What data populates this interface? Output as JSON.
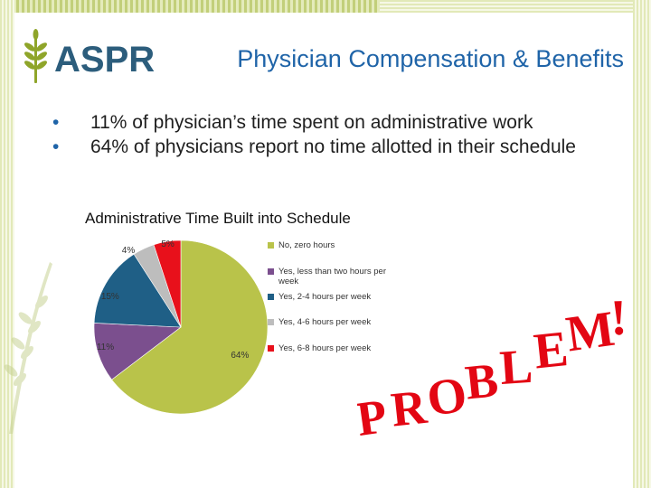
{
  "brand": {
    "name": "ASPR"
  },
  "title": "Physician Compensation & Benefits",
  "bullets": [
    "11% of physician’s time spent on administrative work",
    "64% of physicians report no time allotted in their schedule"
  ],
  "bullet_symbol": "•",
  "stamp": {
    "letters": [
      "P",
      "R",
      "O",
      "B",
      "L",
      "E",
      "M",
      "!"
    ],
    "color": "#e30613"
  },
  "chart_data": {
    "type": "pie",
    "title": "Administrative Time Built into Schedule",
    "series": [
      {
        "values": [
          64,
          11,
          15,
          4,
          5
        ],
        "labels": [
          "64%",
          "11%",
          "15%",
          "4%",
          "5%"
        ]
      }
    ],
    "categories": [
      "No, zero hours",
      "Yes, less than two hours per week",
      "Yes, 2-4 hours per week",
      "Yes, 4-6 hours per week",
      "Yes, 6-8 hours per week"
    ],
    "colors": [
      "#b9c34a",
      "#7b4f8e",
      "#1f5f86",
      "#bdbdbd",
      "#e8101b"
    ],
    "legend_position": "right"
  }
}
